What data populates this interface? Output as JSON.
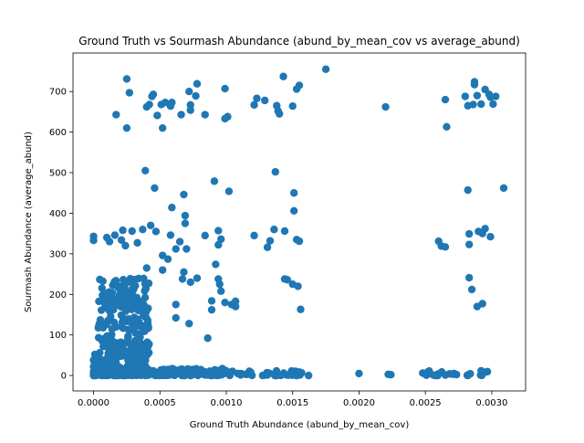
{
  "chart_data": {
    "type": "scatter",
    "title": "Ground Truth vs Sourmash Abundance (abund_by_mean_cov vs average_abund)",
    "xlabel": "Ground Truth Abundance (abund_by_mean_cov)",
    "ylabel": "Sourmash Abundance (average_abund)",
    "xlim": [
      -0.000155,
      0.003255
    ],
    "ylim": [
      -38,
      795
    ],
    "xticks": [
      0.0,
      0.0005,
      0.001,
      0.0015,
      0.002,
      0.0025,
      0.003
    ],
    "xtick_labels": [
      "0.0000",
      "0.0005",
      "0.0010",
      "0.0015",
      "0.0020",
      "0.0025",
      "0.0030"
    ],
    "yticks": [
      0,
      100,
      200,
      300,
      400,
      500,
      600,
      700
    ],
    "ytick_labels": [
      "0",
      "100",
      "200",
      "300",
      "400",
      "500",
      "600",
      "700"
    ],
    "marker_color": "#1f77b4",
    "grid": false,
    "series": [
      {
        "points": [
          [
            0.00175,
            755
          ],
          [
            0.00143,
            737
          ],
          [
            0.00155,
            715
          ],
          [
            0.00153,
            706
          ],
          [
            0.00129,
            678
          ],
          [
            0.00121,
            667
          ],
          [
            0.00123,
            683
          ],
          [
            0.00138,
            665
          ],
          [
            0.00139,
            652
          ],
          [
            0.0014,
            645
          ],
          [
            0.0015,
            664
          ],
          [
            0.00099,
            707
          ],
          [
            0.00099,
            633
          ],
          [
            0.00101,
            638
          ],
          [
            0.00084,
            643
          ],
          [
            0.00078,
            719
          ],
          [
            0.00072,
            700
          ],
          [
            0.00077,
            689
          ],
          [
            0.00073,
            667
          ],
          [
            0.00073,
            654
          ],
          [
            0.00066,
            643
          ],
          [
            0.00059,
            673
          ],
          [
            0.00058,
            664
          ],
          [
            0.00051,
            668
          ],
          [
            0.00054,
            673
          ],
          [
            0.00052,
            610
          ],
          [
            0.00048,
            641
          ],
          [
            0.00045,
            693
          ],
          [
            0.00044,
            688
          ],
          [
            0.00042,
            668
          ],
          [
            0.0004,
            662
          ],
          [
            0.00027,
            697
          ],
          [
            0.00025,
            731
          ],
          [
            0.00025,
            610
          ],
          [
            0.00017,
            643
          ],
          [
            0.0022,
            662
          ],
          [
            0.00265,
            680
          ],
          [
            0.00266,
            613
          ],
          [
            0.0028,
            688
          ],
          [
            0.00287,
            724
          ],
          [
            0.00287,
            717
          ],
          [
            0.00289,
            690
          ],
          [
            0.00286,
            668
          ],
          [
            0.00282,
            665
          ],
          [
            0.00292,
            669
          ],
          [
            0.00295,
            705
          ],
          [
            0.00298,
            693
          ],
          [
            0.00301,
            669
          ],
          [
            0.00303,
            688
          ],
          [
            0.00299,
            686
          ],
          [
            0.00039,
            505
          ],
          [
            0.00137,
            502
          ],
          [
            0.00091,
            479
          ],
          [
            0.00046,
            462
          ],
          [
            0.00068,
            446
          ],
          [
            0.00102,
            454
          ],
          [
            0.00151,
            450
          ],
          [
            0.00282,
            457
          ],
          [
            0.00309,
            462
          ],
          [
            0.00059,
            414
          ],
          [
            0.00151,
            406
          ],
          [
            0.00069,
            394
          ],
          [
            0.00069,
            375
          ],
          [
            0.00043,
            370
          ],
          [
            0.00058,
            346
          ],
          [
            0.00065,
            330
          ],
          [
            0.00062,
            312
          ],
          [
            0.00052,
            296
          ],
          [
            0.00037,
            360
          ],
          [
            0.00029,
            356
          ],
          [
            0.00022,
            358
          ],
          [
            0.00016,
            346
          ],
          [
            0.0001,
            340
          ],
          [
            0.0,
            343
          ],
          [
            0.0,
            333
          ],
          [
            0.00012,
            330
          ],
          [
            0.00021,
            334
          ],
          [
            0.00024,
            320
          ],
          [
            0.00033,
            327
          ],
          [
            0.00047,
            355
          ],
          [
            0.00084,
            345
          ],
          [
            0.00094,
            357
          ],
          [
            0.00096,
            336
          ],
          [
            0.00094,
            322
          ],
          [
            0.0007,
            312
          ],
          [
            0.00121,
            345
          ],
          [
            0.00131,
            316
          ],
          [
            0.00133,
            332
          ],
          [
            0.00136,
            360
          ],
          [
            0.00144,
            356
          ],
          [
            0.00153,
            335
          ],
          [
            0.00155,
            331
          ],
          [
            0.0026,
            331
          ],
          [
            0.00262,
            319
          ],
          [
            0.00265,
            317
          ],
          [
            0.00283,
            349
          ],
          [
            0.00283,
            323
          ],
          [
            0.00295,
            362
          ],
          [
            0.00293,
            350
          ],
          [
            0.00299,
            342
          ],
          [
            0.0029,
            355
          ],
          [
            0.00092,
            274
          ],
          [
            0.00078,
            240
          ],
          [
            0.00094,
            238
          ],
          [
            0.00095,
            225
          ],
          [
            0.00096,
            208
          ],
          [
            0.00089,
            184
          ],
          [
            0.00089,
            162
          ],
          [
            0.00099,
            180
          ],
          [
            0.00104,
            175
          ],
          [
            0.00107,
            183
          ],
          [
            0.00107,
            170
          ],
          [
            0.00062,
            175
          ],
          [
            0.00062,
            142
          ],
          [
            0.00072,
            128
          ],
          [
            0.00086,
            92
          ],
          [
            0.00068,
            255
          ],
          [
            0.00067,
            238
          ],
          [
            0.00073,
            230
          ],
          [
            0.00056,
            287
          ],
          [
            0.00052,
            260
          ],
          [
            0.0004,
            265
          ],
          [
            0.00144,
            238
          ],
          [
            0.00146,
            236
          ],
          [
            0.0015,
            225
          ],
          [
            0.00154,
            220
          ],
          [
            0.00156,
            163
          ],
          [
            0.00283,
            241
          ],
          [
            0.00285,
            212
          ],
          [
            0.00289,
            170
          ],
          [
            0.00293,
            177
          ]
        ],
        "dense_clusters": [
          {
            "x": [
              3e-05,
              0.00042
            ],
            "y": [
              0,
              240
            ],
            "count": 340
          },
          {
            "x": [
              0.0,
              0.001
            ],
            "y": [
              0,
              18
            ],
            "count": 240
          },
          {
            "x": [
              0.001,
              0.0016
            ],
            "y": [
              0,
              12
            ],
            "count": 40
          },
          {
            "x": [
              0.0025,
              0.003
            ],
            "y": [
              0,
              12
            ],
            "count": 24
          }
        ],
        "extra_points": [
          [
            0.002,
            5
          ],
          [
            0.00222,
            3
          ],
          [
            0.00224,
            2
          ],
          [
            0.00162,
            0
          ],
          [
            0.00248,
            6
          ],
          [
            0.00252,
            9
          ],
          [
            0.00265,
            1
          ],
          [
            0.00268,
            4
          ],
          [
            0.0,
            10
          ],
          [
            0.0,
            22
          ],
          [
            1e-05,
            52
          ],
          [
            0.0,
            38
          ],
          [
            0.0,
            5
          ],
          [
            0.0,
            0
          ],
          [
            2e-05,
            45
          ],
          [
            1e-05,
            30
          ]
        ]
      }
    ]
  }
}
